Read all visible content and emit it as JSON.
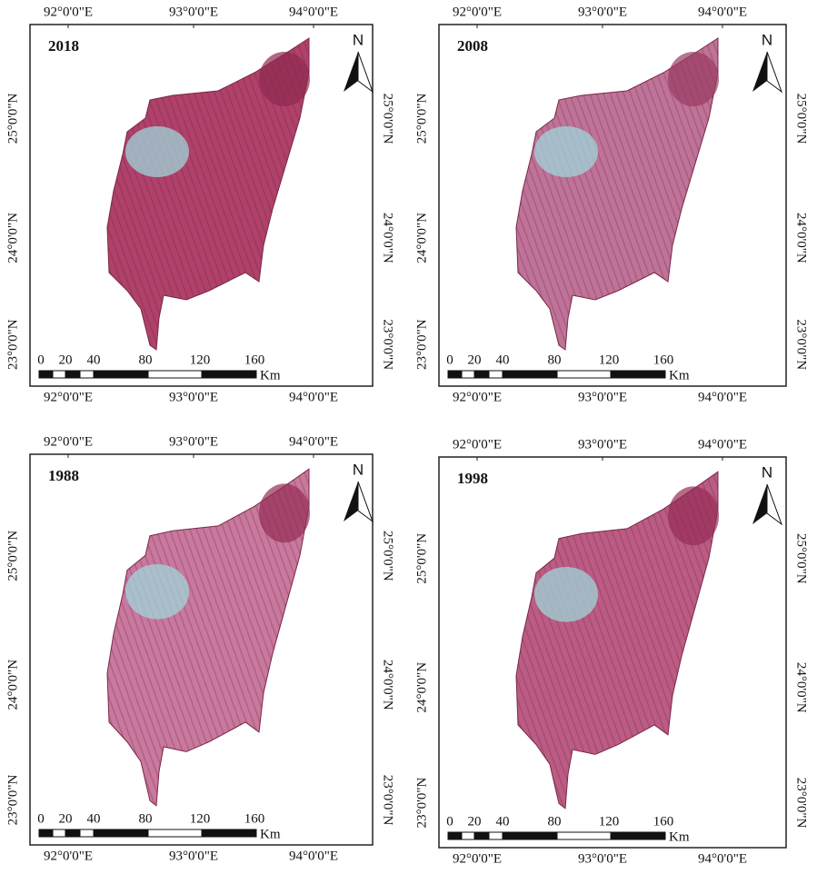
{
  "panels": [
    {
      "title": "2018",
      "top_lon": [
        "92°0'0\"E",
        "93°0'0\"E",
        "94°0'0\"E"
      ],
      "bottom_lon": [
        "92°0'0\"E",
        "93°0'0\"E",
        "94°0'0\"E"
      ],
      "left_lat": [
        "25°0'0\"N",
        "24°0'0\"N",
        "23°0'0\"N"
      ],
      "right_lat": [
        "25°0'0\"N",
        "24°0'0\"N",
        "23°0'0\"N"
      ],
      "scale_labels": [
        "0",
        "20",
        "40",
        "80",
        "120",
        "160"
      ],
      "scale_unit": "Km",
      "north": "N"
    },
    {
      "title": "2008",
      "top_lon": [
        "92°0'0\"E",
        "93°0'0\"E",
        "94°0'0\"E"
      ],
      "bottom_lon": [
        "92°0'0\"E",
        "93°0'0\"E",
        "94°0'0\"E"
      ],
      "left_lat": [
        "25°0'0\"N",
        "24°0'0\"N",
        "23°0'0\"N"
      ],
      "right_lat": [
        "25°0'0\"N",
        "24°0'0\"N",
        "23°0'0\"N"
      ],
      "scale_labels": [
        "0",
        "20",
        "40",
        "80",
        "120",
        "160"
      ],
      "scale_unit": "Km",
      "north": "N"
    },
    {
      "title": "1988",
      "top_lon": [
        "92°0'0\"E",
        "93°0'0\"E",
        "94°0'0\"E"
      ],
      "bottom_lon": [
        "92°0'0\"E",
        "93°0'0\"E",
        "94°0'0\"E"
      ],
      "left_lat": [
        "25°0'0\"N",
        "24°0'0\"N",
        "23°0'0\"N"
      ],
      "right_lat": [
        "25°0'0\"N",
        "24°0'0\"N",
        "23°0'0\"N"
      ],
      "scale_labels": [
        "0",
        "20",
        "40",
        "80",
        "120",
        "160"
      ],
      "scale_unit": "Km",
      "north": "N"
    },
    {
      "title": "1998",
      "top_lon": [
        "92°0'0\"E",
        "93°0'0\"E",
        "94°0'0\"E"
      ],
      "bottom_lon": [
        "92°0'0\"E",
        "93°0'0\"E",
        "94°0'0\"E"
      ],
      "left_lat": [
        "25°0'0\"N",
        "24°0'0\"N",
        "23°0'0\"N"
      ],
      "right_lat": [
        "25°0'0\"N",
        "24°0'0\"N",
        "23°0'0\"N"
      ],
      "scale_labels": [
        "0",
        "20",
        "40",
        "80",
        "120",
        "160"
      ],
      "scale_unit": "Km",
      "north": "N"
    }
  ]
}
